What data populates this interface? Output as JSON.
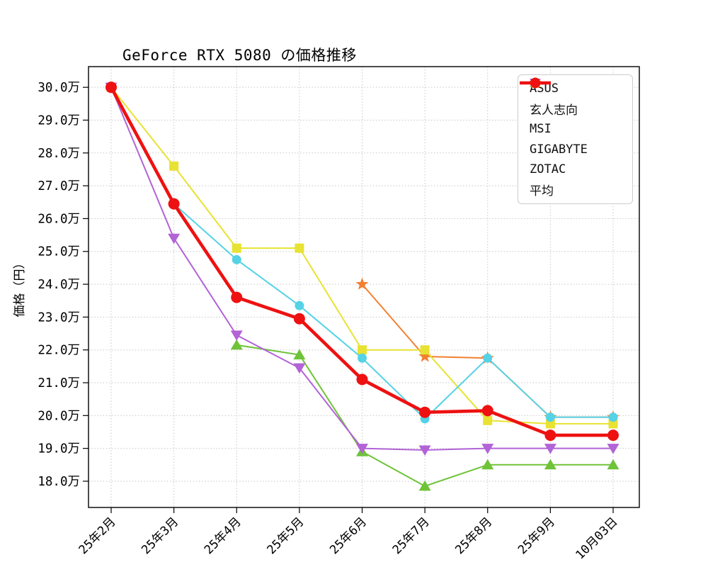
{
  "chart_data": {
    "type": "line",
    "title": "GeForce RTX 5080 の価格推移",
    "ylabel": "価格（円）",
    "xlabel": "",
    "grid": true,
    "legend_position": "upper-right",
    "categories": [
      "25年2月",
      "25年3月",
      "25年4月",
      "25年5月",
      "25年6月",
      "25年7月",
      "25年8月",
      "25年9月",
      "10月03日"
    ],
    "y_ticks": {
      "values": [
        30,
        29,
        28,
        27,
        26,
        25,
        24,
        23,
        22,
        21,
        20,
        19,
        18
      ],
      "labels": [
        "30.0万",
        "29.0万",
        "28.0万",
        "27.0万",
        "26.0万",
        "25.0万",
        "24.0万",
        "23.0万",
        "22.0万",
        "21.0万",
        "20.0万",
        "19.0万",
        "18.0万"
      ]
    },
    "ylim": [
      17.2,
      30.63
    ],
    "unit": "万円",
    "series": [
      {
        "name": "ASUS",
        "color": "#f28030",
        "marker": "star",
        "thick": false,
        "values": [
          null,
          null,
          null,
          null,
          24.0,
          21.8,
          21.75,
          19.95,
          19.95
        ]
      },
      {
        "name": "玄人志向",
        "color": "#6ec338",
        "marker": "triangle-up",
        "thick": false,
        "values": [
          null,
          null,
          22.15,
          21.85,
          18.9,
          17.85,
          18.5,
          18.5,
          18.5
        ]
      },
      {
        "name": "MSI",
        "color": "#e8e232",
        "marker": "square",
        "thick": false,
        "values": [
          30.0,
          27.6,
          25.1,
          25.1,
          22.0,
          22.0,
          19.85,
          19.75,
          19.75
        ]
      },
      {
        "name": "GIGABYTE",
        "color": "#55d2e5",
        "marker": "circle",
        "thick": false,
        "values": [
          30.0,
          26.45,
          24.75,
          23.35,
          21.75,
          19.9,
          21.75,
          19.95,
          19.95
        ]
      },
      {
        "name": "ZOTAC",
        "color": "#b263d6",
        "marker": "triangle-down",
        "thick": false,
        "values": [
          30.0,
          25.4,
          22.45,
          21.45,
          19.0,
          18.95,
          19.0,
          19.0,
          19.0
        ]
      },
      {
        "name": "平均",
        "color": "#ee1111",
        "marker": "circle",
        "thick": true,
        "values": [
          30.0,
          26.45,
          23.6,
          22.95,
          21.1,
          20.1,
          20.15,
          19.4,
          19.4
        ]
      }
    ]
  }
}
